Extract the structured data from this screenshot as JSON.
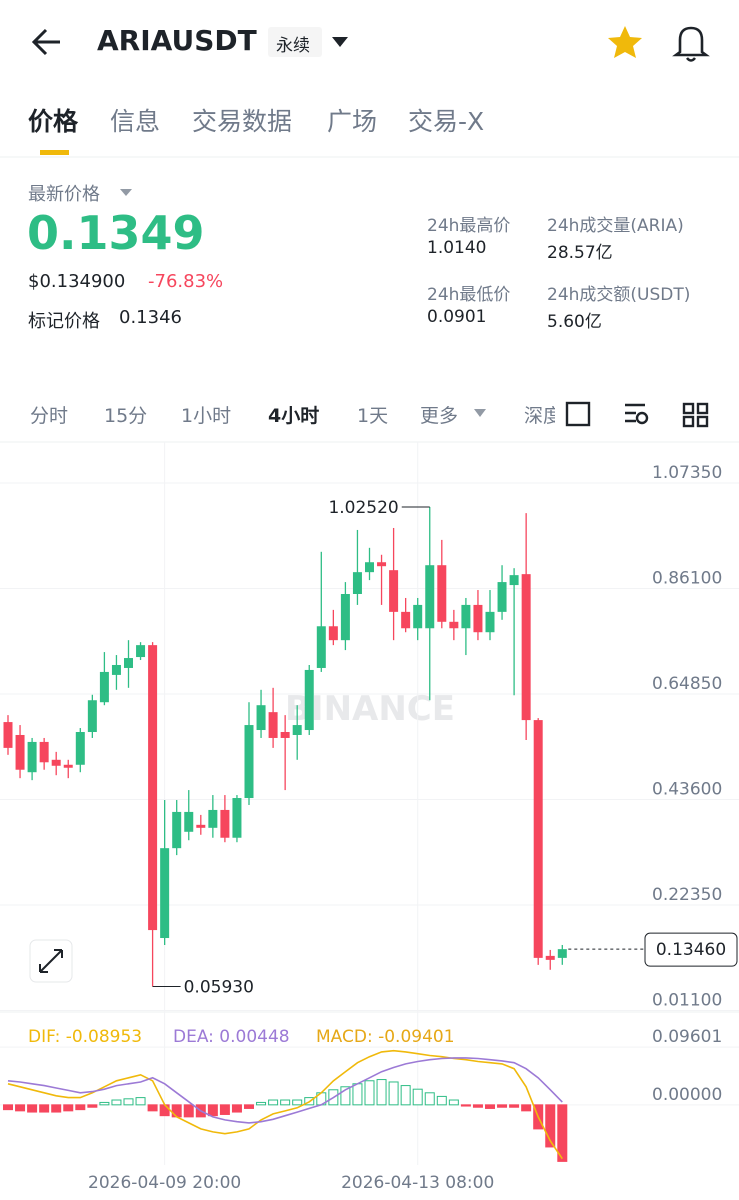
{
  "header": {
    "title": "ARIAUSDT",
    "badge": "永续"
  },
  "tabs": [
    "价格",
    "信息",
    "交易数据",
    "广场",
    "交易-X"
  ],
  "active_tab": 0,
  "price": {
    "label": "最新价格",
    "last": "0.1349",
    "usd": "$0.134900",
    "change": "-76.83%",
    "mark_label": "标记价格",
    "mark": "0.1346"
  },
  "stats": [
    {
      "label": "24h最高价",
      "value": "1.0140"
    },
    {
      "label": "24h成交量(ARIA)",
      "value": "28.57亿"
    },
    {
      "label": "24h最低价",
      "value": "0.0901"
    },
    {
      "label": "24h成交额(USDT)",
      "value": "5.60亿"
    }
  ],
  "intervals": [
    "分时",
    "15分",
    "1小时",
    "4小时",
    "1天",
    "更多",
    "深度"
  ],
  "active_interval": 3,
  "chart_data": [
    {
      "type": "candlestick",
      "categories": [
        null,
        null,
        null,
        null,
        null,
        null,
        null,
        null,
        null,
        null,
        null,
        null,
        null,
        "2026-04-09 20:00",
        null,
        null,
        null,
        null,
        null,
        null,
        null,
        null,
        null,
        null,
        null,
        null,
        null,
        null,
        null,
        null,
        null,
        null,
        null,
        null,
        "2026-04-13 08:00",
        null,
        null,
        null,
        null,
        null,
        null,
        null,
        null,
        null,
        null,
        null,
        null
      ],
      "open": [
        0.592,
        0.566,
        0.491,
        0.552,
        0.516,
        0.506,
        0.506,
        0.572,
        0.632,
        0.687,
        0.701,
        0.723,
        0.747,
        0.157,
        0.338,
        0.371,
        0.385,
        0.379,
        0.415,
        0.359,
        0.439,
        0.576,
        0.612,
        0.572,
        0.566,
        0.576,
        0.701,
        0.785,
        0.757,
        0.85,
        0.894,
        0.914,
        0.898,
        0.814,
        0.781,
        0.781,
        0.908,
        0.794,
        0.781,
        0.828,
        0.773,
        0.814,
        0.868,
        0.89,
        0.596,
        0.121,
        0.117
      ],
      "high": [
        0.606,
        0.586,
        0.56,
        0.56,
        0.532,
        0.516,
        0.58,
        0.647,
        0.733,
        0.727,
        0.757,
        0.753,
        0.753,
        0.435,
        0.435,
        0.455,
        0.405,
        0.445,
        0.445,
        0.445,
        0.632,
        0.657,
        0.661,
        0.606,
        0.626,
        0.707,
        0.935,
        0.818,
        0.874,
        0.979,
        0.943,
        0.929,
        0.983,
        0.842,
        0.842,
        1.0252,
        0.959,
        0.818,
        0.842,
        0.858,
        0.858,
        0.908,
        0.902,
        1.013,
        0.6,
        0.133,
        0.143
      ],
      "low": [
        0.526,
        0.479,
        0.475,
        0.496,
        0.485,
        0.479,
        0.491,
        0.56,
        0.626,
        0.657,
        0.661,
        0.717,
        0.0593,
        0.143,
        0.324,
        0.354,
        0.365,
        0.359,
        0.35,
        0.35,
        0.425,
        0.56,
        0.54,
        0.455,
        0.516,
        0.566,
        0.693,
        0.747,
        0.737,
        0.828,
        0.878,
        0.828,
        0.757,
        0.773,
        0.757,
        0.636,
        0.781,
        0.757,
        0.727,
        0.757,
        0.757,
        0.798,
        0.646,
        0.556,
        0.103,
        0.093,
        0.103
      ],
      "close": [
        0.54,
        0.496,
        0.552,
        0.511,
        0.504,
        0.5,
        0.572,
        0.636,
        0.693,
        0.707,
        0.721,
        0.747,
        0.173,
        0.338,
        0.411,
        0.411,
        0.379,
        0.415,
        0.359,
        0.439,
        0.586,
        0.626,
        0.56,
        0.56,
        0.586,
        0.697,
        0.785,
        0.757,
        0.85,
        0.894,
        0.914,
        0.906,
        0.814,
        0.781,
        0.828,
        0.908,
        0.794,
        0.781,
        0.828,
        0.773,
        0.814,
        0.874,
        0.888,
        0.596,
        0.117,
        0.113,
        0.1346
      ],
      "up_color": "#2ebd85",
      "down_color": "#f6465d",
      "ylim": [
        0.011,
        1.13
      ],
      "yticks": [
        {
          "value": 1.0735,
          "label": "1.07350"
        },
        {
          "value": 0.861,
          "label": "0.86100"
        },
        {
          "value": 0.6485,
          "label": "0.64850"
        },
        {
          "value": 0.436,
          "label": "0.43600"
        },
        {
          "value": 0.2235,
          "label": "0.22350"
        },
        {
          "value": 0.011,
          "label": "0.01100"
        }
      ],
      "grid": true,
      "watermark": "BINANCE",
      "annotations": [
        {
          "value": 1.0252,
          "label": "1.02520"
        },
        {
          "value": 0.0593,
          "label": "0.05930"
        }
      ],
      "last_price": {
        "value": 0.1346,
        "label": "0.13460"
      }
    },
    {
      "type": "macd",
      "ylim": [
        -0.1,
        0.141
      ],
      "yticks": [
        0.09601,
        {
          "value": 0,
          "label": "0.00000"
        }
      ],
      "up_color": "#2ebd85",
      "down_color": "#f6465d",
      "series": [
        {
          "name": "DIF: -0.08953",
          "color": "#f0b90b",
          "style": "line",
          "values": [
            0.035,
            0.03,
            0.025,
            0.02,
            0.015,
            0.012,
            0.012,
            0.02,
            0.03,
            0.04,
            0.045,
            0.05,
            0.04,
            0.0,
            -0.02,
            -0.03,
            -0.04,
            -0.045,
            -0.048,
            -0.045,
            -0.04,
            -0.025,
            -0.015,
            -0.01,
            -0.005,
            0.005,
            0.02,
            0.04,
            0.055,
            0.07,
            0.08,
            0.088,
            0.09,
            0.088,
            0.085,
            0.082,
            0.08,
            0.077,
            0.075,
            0.072,
            0.07,
            0.068,
            0.06,
            0.03,
            -0.02,
            -0.06,
            -0.08953
          ]
        },
        {
          "name": "DEA: 0.00448",
          "color": "#9c7ad6",
          "style": "line",
          "values": [
            0.04,
            0.038,
            0.035,
            0.032,
            0.028,
            0.024,
            0.02,
            0.022,
            0.026,
            0.032,
            0.035,
            0.038,
            0.045,
            0.035,
            0.02,
            0.005,
            -0.01,
            -0.02,
            -0.025,
            -0.028,
            -0.03,
            -0.028,
            -0.024,
            -0.018,
            -0.012,
            -0.006,
            0.0,
            0.012,
            0.025,
            0.035,
            0.045,
            0.055,
            0.062,
            0.068,
            0.072,
            0.075,
            0.077,
            0.078,
            0.078,
            0.077,
            0.075,
            0.073,
            0.07,
            0.06,
            0.045,
            0.025,
            0.00448
          ]
        },
        {
          "name": "MACD: -0.09401",
          "color": "#e6a817",
          "style": "bar",
          "values": [
            -0.008,
            -0.01,
            -0.012,
            -0.012,
            -0.012,
            -0.01,
            -0.008,
            -0.004,
            0.004,
            0.008,
            0.01,
            0.012,
            -0.01,
            -0.018,
            -0.02,
            -0.02,
            -0.02,
            -0.018,
            -0.016,
            -0.012,
            -0.006,
            0.004,
            0.008,
            0.008,
            0.008,
            0.012,
            0.02,
            0.025,
            0.03,
            0.035,
            0.04,
            0.042,
            0.038,
            0.032,
            0.026,
            0.02,
            0.014,
            0.008,
            -0.002,
            -0.004,
            -0.006,
            -0.004,
            -0.004,
            -0.01,
            -0.04,
            -0.07,
            -0.09401
          ]
        }
      ]
    }
  ]
}
